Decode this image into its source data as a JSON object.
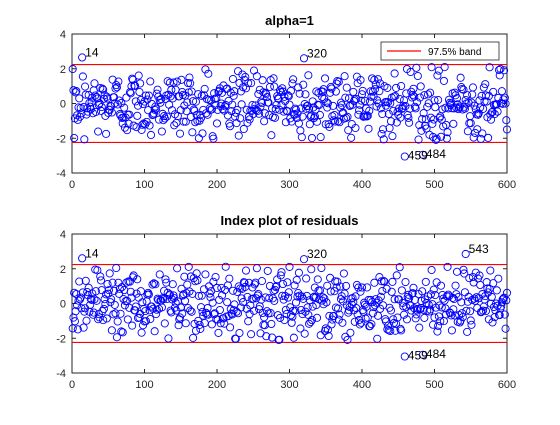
{
  "chart_data": [
    {
      "type": "scatter",
      "title": "alpha=1",
      "xlabel": "",
      "ylabel": "",
      "xlim": [
        0,
        600
      ],
      "ylim": [
        -4,
        4
      ],
      "xticks": [
        "0",
        "100",
        "200",
        "300",
        "400",
        "500",
        "600"
      ],
      "yticks": [
        "-4",
        "-2",
        "0",
        "2",
        "4"
      ],
      "n_points": 600,
      "marker_color": "#0000ff",
      "band_color": "#ff0000",
      "band": [
        -2.24,
        2.24
      ],
      "legend": {
        "label": "97.5% band",
        "position": "top-right"
      },
      "labeled_points": [
        {
          "label": "14",
          "x": 14,
          "y": 2.65
        },
        {
          "label": "320",
          "x": 320,
          "y": 2.6
        },
        {
          "label": "459",
          "x": 459,
          "y": -3.05
        },
        {
          "label": "484",
          "x": 484,
          "y": -2.95
        }
      ]
    },
    {
      "type": "scatter",
      "title": "Index plot of residuals",
      "xlabel": "",
      "ylabel": "",
      "xlim": [
        0,
        600
      ],
      "ylim": [
        -4,
        4
      ],
      "xticks": [
        "0",
        "100",
        "200",
        "300",
        "400",
        "500",
        "600"
      ],
      "yticks": [
        "-4",
        "-2",
        "0",
        "2",
        "4"
      ],
      "n_points": 600,
      "marker_color": "#0000ff",
      "band_color": "#ff0000",
      "band": [
        -2.24,
        2.24
      ],
      "labeled_points": [
        {
          "label": "14",
          "x": 14,
          "y": 2.6
        },
        {
          "label": "320",
          "x": 320,
          "y": 2.55
        },
        {
          "label": "543",
          "x": 543,
          "y": 2.85
        },
        {
          "label": "459",
          "x": 459,
          "y": -3.05
        },
        {
          "label": "484",
          "x": 484,
          "y": -2.95
        }
      ]
    }
  ]
}
